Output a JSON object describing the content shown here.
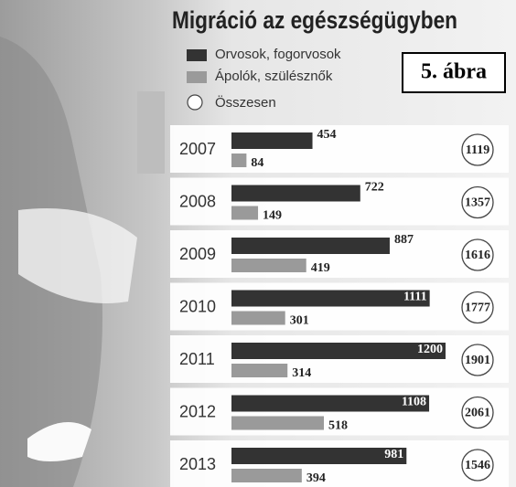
{
  "chart_data": {
    "type": "grouped-hbar",
    "title": "Migráció az egészségügyben",
    "figure_label": "5. ábra",
    "categories": [
      "2007",
      "2008",
      "2009",
      "2010",
      "2011",
      "2012",
      "2013"
    ],
    "series": [
      {
        "name": "Orvosok, fogorvosok",
        "color": "#333333",
        "values": [
          454,
          722,
          887,
          1111,
          1200,
          1108,
          981
        ]
      },
      {
        "name": "Ápolók, szülésznők",
        "color": "#9a9a9a",
        "values": [
          84,
          149,
          419,
          301,
          314,
          518,
          394
        ]
      }
    ],
    "totals": {
      "name": "Összesen",
      "values": [
        1119,
        1357,
        1616,
        1777,
        1901,
        2061,
        1546
      ]
    }
  }
}
